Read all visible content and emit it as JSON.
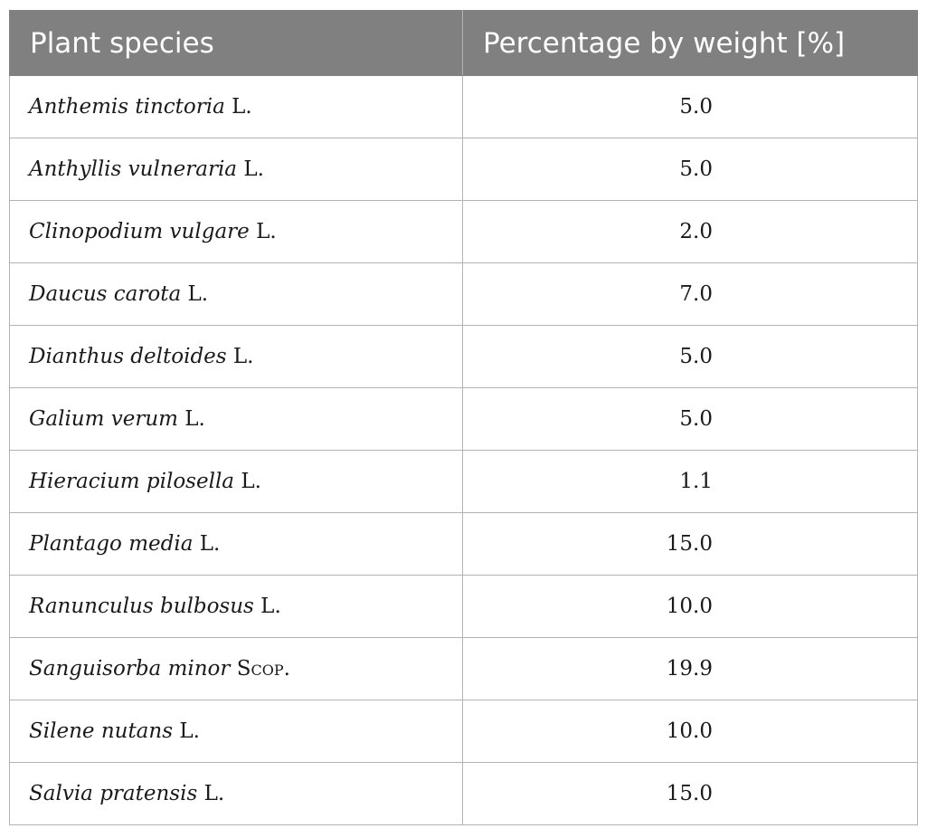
{
  "table": {
    "headers": {
      "species": "Plant species",
      "percentage": "Percentage by weight [%]"
    },
    "rows": [
      {
        "name": "Anthemis tinctoria",
        "author": "L.",
        "value": "5.0"
      },
      {
        "name": "Anthyllis vulneraria",
        "author": "L.",
        "value": "5.0"
      },
      {
        "name": "Clinopodium vulgare",
        "author": "L.",
        "value": "2.0"
      },
      {
        "name": "Daucus carota",
        "author": "L.",
        "value": "7.0"
      },
      {
        "name": "Dianthus deltoides",
        "author": "L.",
        "value": "5.0"
      },
      {
        "name": "Galium verum",
        "author": "L.",
        "value": "5.0"
      },
      {
        "name": "Hieracium pilosella",
        "author": "L.",
        "value": "1.1"
      },
      {
        "name": "Plantago media",
        "author": "L.",
        "value": "15.0"
      },
      {
        "name": "Ranunculus bulbosus",
        "author": "L.",
        "value": "10.0"
      },
      {
        "name": "Sanguisorba minor",
        "author": "Scop.",
        "value": "19.9"
      },
      {
        "name": "Silene nutans",
        "author": "L.",
        "value": "10.0"
      },
      {
        "name": "Salvia pratensis",
        "author": "L.",
        "value": "15.0"
      }
    ]
  },
  "colors": {
    "header_bg": "#808080",
    "header_text": "#ffffff",
    "grid_line": "#b3b3b3"
  }
}
